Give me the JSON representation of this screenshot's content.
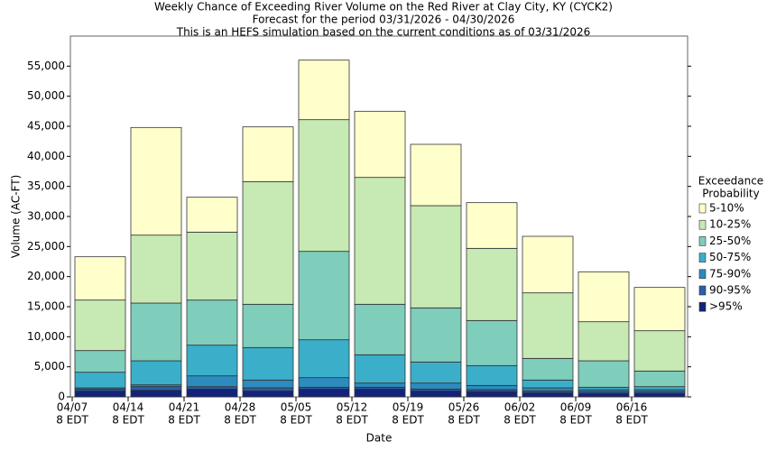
{
  "chart_data": {
    "type": "stacked_bar",
    "title": [
      "Weekly Chance of Exceeding River Volume on the Red River at Clay City, KY (CYCK2)",
      "Forecast for the period 03/31/2026 - 04/30/2026",
      "This is an HEFS simulation based on the current conditions as of 03/31/2026"
    ],
    "x_label": "Date",
    "y_label": "Volume (AC-FT)",
    "legend_title": [
      "Exceedance",
      "Probability"
    ],
    "legend_position": "right",
    "grid": false,
    "categories": [
      [
        "04/07",
        "8 EDT"
      ],
      [
        "04/14",
        "8 EDT"
      ],
      [
        "04/21",
        "8 EDT"
      ],
      [
        "04/28",
        "8 EDT"
      ],
      [
        "05/05",
        "8 EDT"
      ],
      [
        "05/12",
        "8 EDT"
      ],
      [
        "05/19",
        "8 EDT"
      ],
      [
        "05/26",
        "8 EDT"
      ],
      [
        "06/02",
        "8 EDT"
      ],
      [
        "06/09",
        "8 EDT"
      ],
      [
        "06/16",
        "8 EDT"
      ]
    ],
    "ylim": [
      0,
      60000
    ],
    "yticks": [
      0,
      {
        "value": 5000,
        "label": "5,000"
      },
      {
        "value": 10000,
        "label": "10,000"
      },
      {
        "value": 15000,
        "label": "15,000"
      },
      {
        "value": 20000,
        "label": "20,000"
      },
      {
        "value": 25000,
        "label": "25,000"
      },
      {
        "value": 30000,
        "label": "30,000"
      },
      {
        "value": 35000,
        "label": "35,000"
      },
      {
        "value": 40000,
        "label": "40,000"
      },
      {
        "value": 45000,
        "label": "45,000"
      },
      {
        "value": 50000,
        "label": "50,000"
      },
      {
        "value": 55000,
        "label": "55,000"
      }
    ],
    "series": [
      {
        "name": ">95%",
        "color": "#14237a",
        "values": [
          1000,
          1100,
          1300,
          1000,
          1300,
          1300,
          1000,
          900,
          700,
          600,
          600
        ]
      },
      {
        "name": "90-95%",
        "color": "#2a5ea8",
        "values": [
          300,
          600,
          400,
          500,
          300,
          300,
          300,
          300,
          300,
          300,
          300
        ]
      },
      {
        "name": "75-90%",
        "color": "#2c8bbf",
        "values": [
          200,
          300,
          1800,
          1300,
          1600,
          700,
          1000,
          700,
          500,
          300,
          300
        ]
      },
      {
        "name": "50-75%",
        "color": "#3bafc9",
        "values": [
          2600,
          4000,
          5100,
          5400,
          6300,
          4700,
          3500,
          3300,
          1300,
          400,
          500
        ]
      },
      {
        "name": "25-50%",
        "color": "#7fcdbb",
        "values": [
          3600,
          9600,
          7500,
          7200,
          14700,
          8400,
          9000,
          7500,
          3600,
          4400,
          2600
        ]
      },
      {
        "name": "10-25%",
        "color": "#c7e9b4",
        "values": [
          8400,
          11300,
          11300,
          20400,
          21900,
          21100,
          17000,
          12000,
          10900,
          6500,
          6700
        ]
      },
      {
        "name": "5-10%",
        "color": "#ffffcc",
        "values": [
          7200,
          17900,
          5800,
          9100,
          9900,
          11000,
          10200,
          7600,
          9400,
          8300,
          7200
        ]
      }
    ]
  }
}
